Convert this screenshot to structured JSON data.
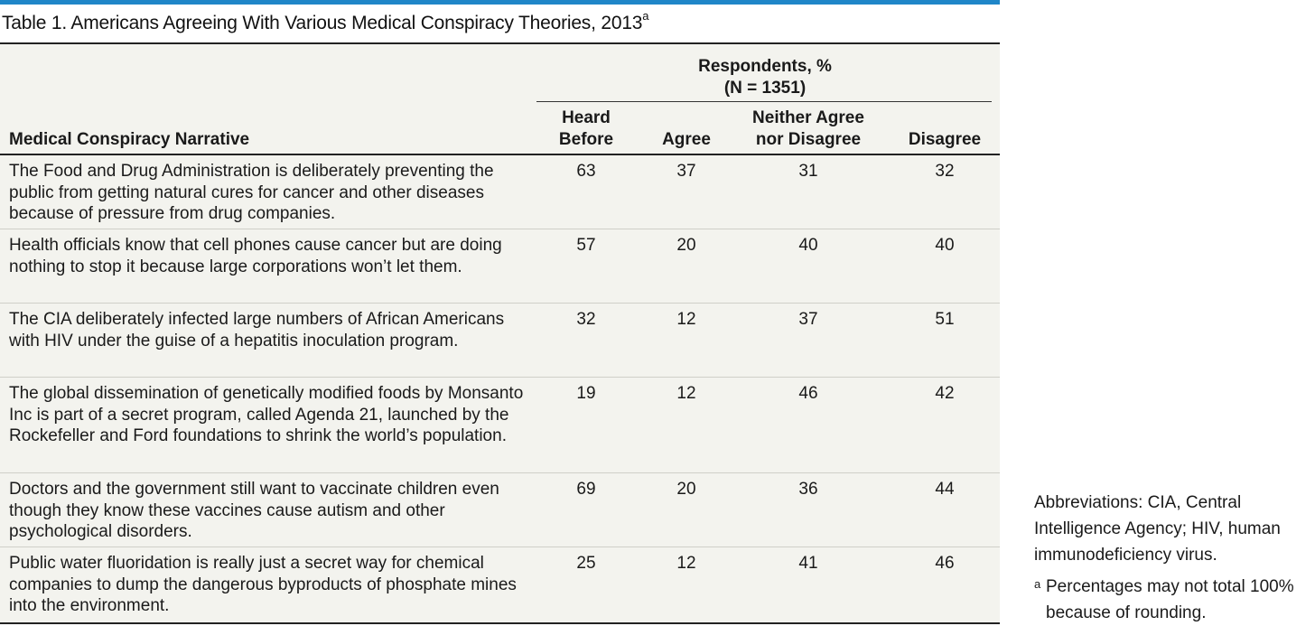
{
  "title": {
    "text": "Table 1. Americans Agreeing With Various Medical Conspiracy Theories, 2013",
    "footnote_mark": "a"
  },
  "header": {
    "respondents_line1": "Respondents, %",
    "respondents_line2": "(N = 1351)",
    "narrative": "Medical Conspiracy Narrative",
    "heard_line1": "Heard",
    "heard_line2": "Before",
    "agree": "Agree",
    "neither_line1": "Neither Agree",
    "neither_line2": "nor Disagree",
    "disagree": "Disagree"
  },
  "rows": [
    {
      "narrative": "The Food and Drug Administration is deliberately preventing the public from getting natural cures for cancer and other diseases because of pressure from drug companies.",
      "heard": "63",
      "agree": "37",
      "neither": "31",
      "disagree": "32"
    },
    {
      "narrative": "Health officials know that cell phones cause cancer but are doing nothing to stop it because large corporations won’t let them.",
      "heard": "57",
      "agree": "20",
      "neither": "40",
      "disagree": "40"
    },
    {
      "narrative": "The CIA deliberately infected large numbers of African Americans with HIV under the guise of a hepatitis inoculation program.",
      "heard": "32",
      "agree": "12",
      "neither": "37",
      "disagree": "51"
    },
    {
      "narrative": "The global dissemination of genetically modified foods by Monsanto Inc is part of a secret program, called Agenda 21, launched by the Rockefeller and Ford foundations to shrink the world’s population.",
      "heard": "19",
      "agree": "12",
      "neither": "46",
      "disagree": "42"
    },
    {
      "narrative": "Doctors and the government still want to vaccinate children even though they know these vaccines cause autism and other psychological disorders.",
      "heard": "69",
      "agree": "20",
      "neither": "36",
      "disagree": "44"
    },
    {
      "narrative": "Public water fluoridation is really just a secret way for chemical companies to dump the dangerous byproducts of phosphate mines into the environment.",
      "heard": "25",
      "agree": "12",
      "neither": "41",
      "disagree": "46"
    }
  ],
  "notes": {
    "abbreviations": "Abbreviations: CIA, Central Intelligence Agency; HIV, human immunodeficiency virus.",
    "footnote_mark": "a",
    "footnote_text": "Percentages may not total 100% because of rounding."
  },
  "colors": {
    "accent_bar": "#1f86c8",
    "table_background": "#f3f3ee"
  }
}
